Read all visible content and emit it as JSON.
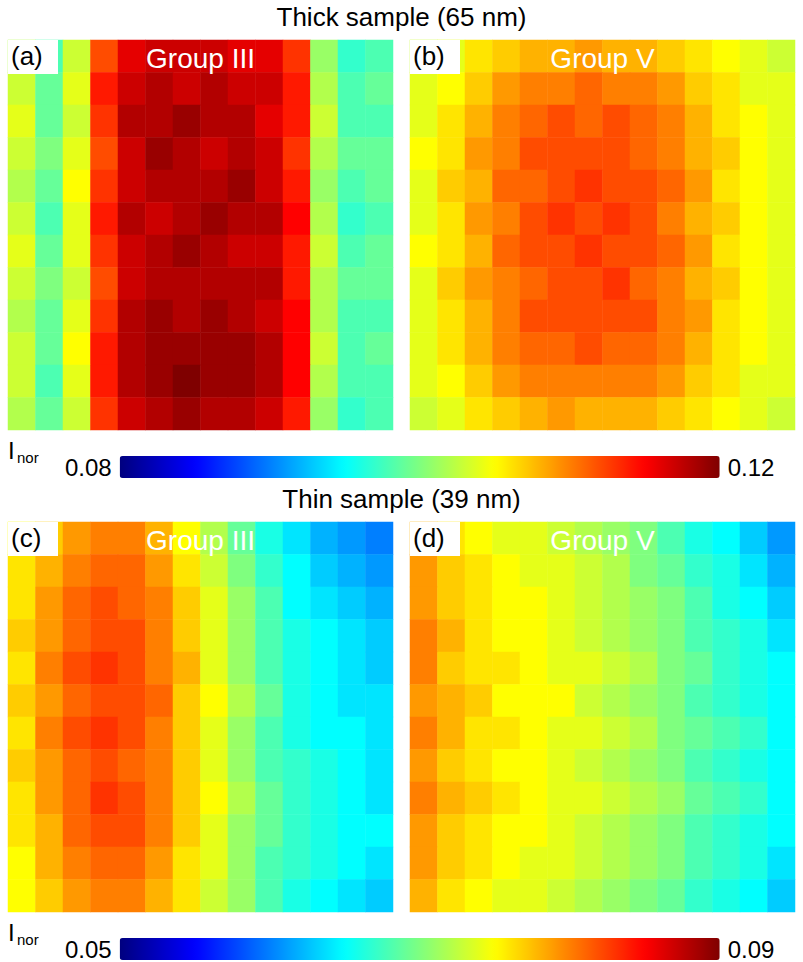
{
  "chart_data": [
    {
      "type": "heatmap",
      "title": "Thick sample (65 nm)",
      "tick_labels": false,
      "colorbar": {
        "label": "I",
        "label_subscript": "nor",
        "range": [
          0.08,
          0.12
        ],
        "ticks": [
          0.08,
          0.12
        ]
      },
      "panels": [
        {
          "label": "(a)",
          "title": "Group III",
          "cells": [
            [
              0.102,
              0.098,
              0.103,
              0.112,
              0.116,
              0.117,
              0.117,
              0.117,
              0.116,
              0.116,
              0.113,
              0.101,
              0.097,
              0.098
            ],
            [
              0.103,
              0.099,
              0.104,
              0.114,
              0.117,
              0.118,
              0.117,
              0.118,
              0.117,
              0.117,
              0.114,
              0.102,
              0.098,
              0.099
            ],
            [
              0.104,
              0.099,
              0.103,
              0.113,
              0.118,
              0.118,
              0.119,
              0.118,
              0.118,
              0.116,
              0.114,
              0.103,
              0.098,
              0.098
            ],
            [
              0.103,
              0.1,
              0.104,
              0.112,
              0.117,
              0.119,
              0.118,
              0.117,
              0.118,
              0.117,
              0.113,
              0.102,
              0.099,
              0.099
            ],
            [
              0.102,
              0.099,
              0.105,
              0.113,
              0.117,
              0.118,
              0.118,
              0.118,
              0.119,
              0.117,
              0.114,
              0.101,
              0.098,
              0.099
            ],
            [
              0.103,
              0.098,
              0.104,
              0.114,
              0.118,
              0.117,
              0.118,
              0.119,
              0.118,
              0.118,
              0.115,
              0.102,
              0.097,
              0.098
            ],
            [
              0.104,
              0.099,
              0.104,
              0.113,
              0.117,
              0.118,
              0.119,
              0.118,
              0.117,
              0.117,
              0.114,
              0.103,
              0.098,
              0.099
            ],
            [
              0.103,
              0.1,
              0.103,
              0.112,
              0.117,
              0.118,
              0.118,
              0.118,
              0.118,
              0.118,
              0.114,
              0.102,
              0.099,
              0.099
            ],
            [
              0.102,
              0.099,
              0.104,
              0.113,
              0.118,
              0.119,
              0.118,
              0.119,
              0.118,
              0.117,
              0.115,
              0.102,
              0.098,
              0.098
            ],
            [
              0.103,
              0.099,
              0.105,
              0.114,
              0.118,
              0.119,
              0.119,
              0.119,
              0.119,
              0.118,
              0.115,
              0.103,
              0.098,
              0.099
            ],
            [
              0.103,
              0.098,
              0.104,
              0.114,
              0.118,
              0.119,
              0.12,
              0.119,
              0.119,
              0.118,
              0.115,
              0.102,
              0.098,
              0.098
            ],
            [
              0.102,
              0.099,
              0.103,
              0.113,
              0.117,
              0.118,
              0.119,
              0.118,
              0.118,
              0.117,
              0.114,
              0.101,
              0.097,
              0.098
            ]
          ]
        },
        {
          "label": "(b)",
          "title": "Group V",
          "cells": [
            [
              0.103,
              0.104,
              0.106,
              0.107,
              0.108,
              0.108,
              0.109,
              0.108,
              0.108,
              0.107,
              0.106,
              0.105,
              0.104,
              0.103
            ],
            [
              0.104,
              0.105,
              0.107,
              0.109,
              0.11,
              0.11,
              0.111,
              0.11,
              0.11,
              0.109,
              0.107,
              0.106,
              0.104,
              0.104
            ],
            [
              0.104,
              0.106,
              0.108,
              0.11,
              0.111,
              0.112,
              0.111,
              0.112,
              0.111,
              0.11,
              0.108,
              0.106,
              0.105,
              0.104
            ],
            [
              0.105,
              0.106,
              0.109,
              0.11,
              0.112,
              0.112,
              0.112,
              0.112,
              0.111,
              0.11,
              0.108,
              0.107,
              0.105,
              0.104
            ],
            [
              0.104,
              0.107,
              0.108,
              0.111,
              0.111,
              0.112,
              0.113,
              0.112,
              0.112,
              0.111,
              0.109,
              0.106,
              0.105,
              0.104
            ],
            [
              0.104,
              0.106,
              0.109,
              0.11,
              0.112,
              0.113,
              0.112,
              0.113,
              0.112,
              0.11,
              0.108,
              0.107,
              0.105,
              0.104
            ],
            [
              0.105,
              0.106,
              0.108,
              0.111,
              0.112,
              0.112,
              0.113,
              0.112,
              0.112,
              0.111,
              0.109,
              0.106,
              0.105,
              0.104
            ],
            [
              0.104,
              0.107,
              0.109,
              0.11,
              0.111,
              0.112,
              0.112,
              0.113,
              0.111,
              0.11,
              0.108,
              0.107,
              0.105,
              0.104
            ],
            [
              0.104,
              0.106,
              0.108,
              0.11,
              0.112,
              0.112,
              0.112,
              0.112,
              0.112,
              0.11,
              0.109,
              0.106,
              0.105,
              0.104
            ],
            [
              0.104,
              0.106,
              0.108,
              0.11,
              0.111,
              0.111,
              0.112,
              0.111,
              0.111,
              0.11,
              0.108,
              0.106,
              0.105,
              0.104
            ],
            [
              0.104,
              0.105,
              0.107,
              0.109,
              0.11,
              0.11,
              0.11,
              0.11,
              0.11,
              0.109,
              0.107,
              0.106,
              0.104,
              0.104
            ],
            [
              0.103,
              0.104,
              0.106,
              0.107,
              0.108,
              0.109,
              0.108,
              0.108,
              0.108,
              0.107,
              0.106,
              0.105,
              0.104,
              0.103
            ]
          ]
        }
      ]
    },
    {
      "type": "heatmap",
      "title": "Thin sample (39 nm)",
      "tick_labels": false,
      "colorbar": {
        "label": "I",
        "label_subscript": "nor",
        "range": [
          0.05,
          0.09
        ],
        "ticks": [
          0.05,
          0.09
        ]
      },
      "panels": [
        {
          "label": "(c)",
          "title": "Group III",
          "cells": [
            [
              0.075,
              0.077,
              0.079,
              0.08,
              0.08,
              0.078,
              0.075,
              0.072,
              0.069,
              0.066,
              0.064,
              0.062,
              0.061,
              0.06
            ],
            [
              0.076,
              0.078,
              0.08,
              0.081,
              0.081,
              0.079,
              0.076,
              0.073,
              0.07,
              0.067,
              0.065,
              0.063,
              0.062,
              0.061
            ],
            [
              0.076,
              0.079,
              0.081,
              0.082,
              0.081,
              0.08,
              0.077,
              0.074,
              0.071,
              0.068,
              0.065,
              0.064,
              0.063,
              0.062
            ],
            [
              0.077,
              0.079,
              0.081,
              0.082,
              0.082,
              0.08,
              0.077,
              0.074,
              0.071,
              0.068,
              0.066,
              0.065,
              0.064,
              0.063
            ],
            [
              0.076,
              0.08,
              0.082,
              0.083,
              0.082,
              0.08,
              0.078,
              0.074,
              0.071,
              0.068,
              0.066,
              0.065,
              0.064,
              0.063
            ],
            [
              0.077,
              0.079,
              0.081,
              0.082,
              0.082,
              0.081,
              0.077,
              0.075,
              0.072,
              0.069,
              0.066,
              0.065,
              0.064,
              0.064
            ],
            [
              0.076,
              0.08,
              0.082,
              0.083,
              0.082,
              0.08,
              0.077,
              0.074,
              0.071,
              0.068,
              0.066,
              0.065,
              0.065,
              0.064
            ],
            [
              0.077,
              0.079,
              0.081,
              0.082,
              0.081,
              0.08,
              0.077,
              0.074,
              0.071,
              0.068,
              0.067,
              0.066,
              0.065,
              0.064
            ],
            [
              0.076,
              0.079,
              0.081,
              0.083,
              0.082,
              0.08,
              0.077,
              0.075,
              0.072,
              0.069,
              0.067,
              0.066,
              0.065,
              0.064
            ],
            [
              0.076,
              0.078,
              0.081,
              0.082,
              0.082,
              0.08,
              0.077,
              0.074,
              0.071,
              0.069,
              0.067,
              0.066,
              0.065,
              0.065
            ],
            [
              0.075,
              0.078,
              0.08,
              0.081,
              0.081,
              0.079,
              0.076,
              0.074,
              0.071,
              0.068,
              0.067,
              0.066,
              0.065,
              0.064
            ],
            [
              0.075,
              0.077,
              0.079,
              0.08,
              0.08,
              0.078,
              0.076,
              0.073,
              0.071,
              0.068,
              0.066,
              0.065,
              0.064,
              0.063
            ]
          ]
        },
        {
          "label": "(d)",
          "title": "Group V",
          "cells": [
            [
              0.078,
              0.076,
              0.075,
              0.074,
              0.074,
              0.073,
              0.072,
              0.071,
              0.07,
              0.068,
              0.066,
              0.065,
              0.063,
              0.061
            ],
            [
              0.079,
              0.077,
              0.076,
              0.075,
              0.074,
              0.074,
              0.073,
              0.072,
              0.07,
              0.069,
              0.067,
              0.066,
              0.064,
              0.062
            ],
            [
              0.079,
              0.077,
              0.076,
              0.075,
              0.075,
              0.074,
              0.073,
              0.072,
              0.071,
              0.07,
              0.068,
              0.066,
              0.065,
              0.063
            ],
            [
              0.08,
              0.078,
              0.076,
              0.075,
              0.075,
              0.074,
              0.073,
              0.072,
              0.071,
              0.07,
              0.068,
              0.067,
              0.066,
              0.064
            ],
            [
              0.08,
              0.077,
              0.076,
              0.076,
              0.075,
              0.074,
              0.074,
              0.073,
              0.072,
              0.07,
              0.069,
              0.067,
              0.066,
              0.065
            ],
            [
              0.079,
              0.078,
              0.077,
              0.075,
              0.075,
              0.075,
              0.073,
              0.072,
              0.071,
              0.07,
              0.068,
              0.067,
              0.066,
              0.065
            ],
            [
              0.08,
              0.078,
              0.076,
              0.076,
              0.075,
              0.074,
              0.074,
              0.073,
              0.072,
              0.07,
              0.069,
              0.068,
              0.067,
              0.065
            ],
            [
              0.079,
              0.077,
              0.076,
              0.075,
              0.075,
              0.074,
              0.073,
              0.072,
              0.071,
              0.07,
              0.068,
              0.067,
              0.066,
              0.065
            ],
            [
              0.08,
              0.078,
              0.077,
              0.076,
              0.075,
              0.074,
              0.074,
              0.073,
              0.072,
              0.071,
              0.069,
              0.068,
              0.067,
              0.065
            ],
            [
              0.079,
              0.077,
              0.076,
              0.075,
              0.075,
              0.074,
              0.073,
              0.072,
              0.071,
              0.07,
              0.068,
              0.067,
              0.066,
              0.065
            ],
            [
              0.079,
              0.077,
              0.076,
              0.075,
              0.074,
              0.074,
              0.073,
              0.072,
              0.071,
              0.07,
              0.068,
              0.067,
              0.066,
              0.064
            ],
            [
              0.078,
              0.076,
              0.075,
              0.074,
              0.074,
              0.073,
              0.072,
              0.071,
              0.07,
              0.069,
              0.067,
              0.066,
              0.065,
              0.063
            ]
          ]
        }
      ]
    }
  ]
}
